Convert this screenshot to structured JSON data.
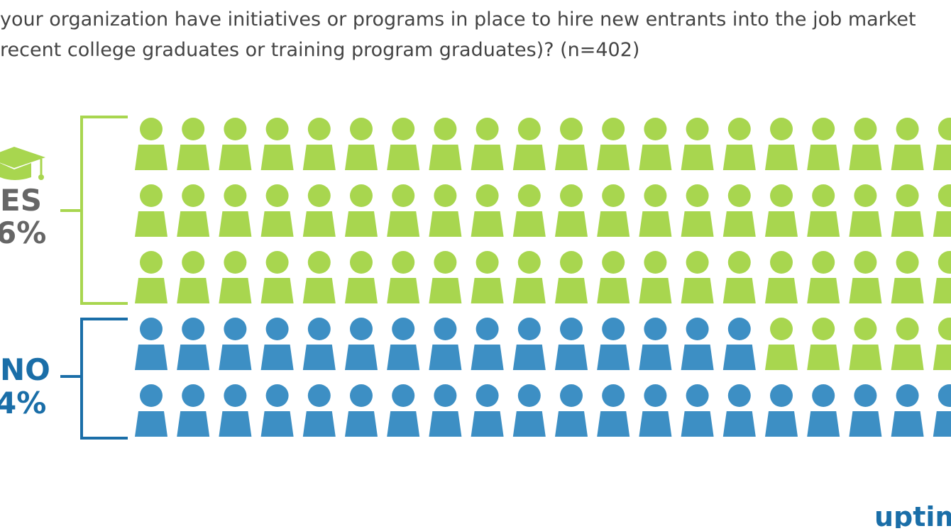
{
  "title": {
    "line1": "your organization have initiatives or programs in place to hire new entrants into the job market",
    "line2": "recent college graduates or training program graduates)? (n=402)"
  },
  "groups": [
    {
      "label": "ES",
      "percent": "6%"
    },
    {
      "label": "NO",
      "percent": "4%"
    }
  ],
  "logo": "uptim"
}
